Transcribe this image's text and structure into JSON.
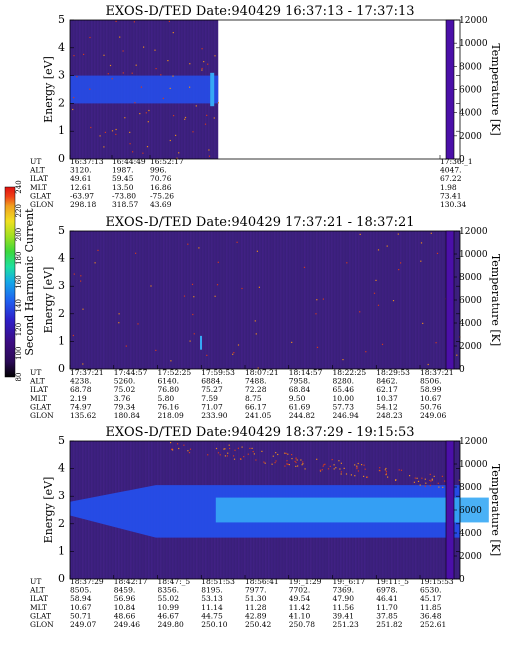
{
  "chart_data": [
    {
      "type": "heatmap",
      "title": "EXOS-D/TED   Date:940429  16:37:13 - 17:37:13",
      "ylabel": "Energy [eV]",
      "ylim": [
        0,
        5
      ],
      "yticks": [
        "0",
        "1",
        "2",
        "3",
        "4",
        "5"
      ],
      "zlabel": "Temperature [K]",
      "zlim": [
        0,
        12000
      ],
      "zticks": [
        "0",
        "2000",
        "4000",
        "6000",
        "8000",
        "10000",
        "12000"
      ],
      "data_extent_fraction": 0.38,
      "band": {
        "energy_center": 2.5,
        "energy_halfwidth": 0.5,
        "intensity": "blue"
      },
      "table": {
        "row_labels": [
          "UT",
          "ALT",
          "ILAT",
          "MLT",
          "GLAT",
          "GLON"
        ],
        "columns": [
          {
            "UT": "16:37:13",
            "ALT": "3120.",
            "ILAT": "49.61",
            "MLT": "12.61",
            "GLAT": "-63.97",
            "GLON": "298.18"
          },
          {
            "UT": "16:44:49",
            "ALT": "1987.",
            "ILAT": "59.45",
            "MLT": "13.50",
            "GLAT": "-73.80",
            "GLON": "318.57"
          },
          {
            "UT": "16:52:17",
            "ALT": "996.",
            "ILAT": "70.76",
            "MLT": "16.86",
            "GLAT": "-75.26",
            "GLON": "43.69"
          },
          {
            "UT": "17:36:_1",
            "ALT": "4047.",
            "ILAT": "67.22",
            "MLT": "1.98",
            "GLAT": "73.41",
            "GLON": "130.34"
          }
        ]
      }
    },
    {
      "type": "heatmap",
      "title": "EXOS-D/TED   Date:940429  17:37:21 - 18:37:21",
      "ylabel": "Energy [eV]",
      "ylim": [
        0,
        5
      ],
      "yticks": [
        "0",
        "1",
        "2",
        "3",
        "4",
        "5"
      ],
      "zlabel": "Temperature [K]",
      "zlim": [
        0,
        12000
      ],
      "zticks": [
        "0",
        "2000",
        "4000",
        "6000",
        "8000",
        "10000",
        "12000"
      ],
      "data_extent_fraction": 1.0,
      "band": null,
      "table": {
        "row_labels": [
          "UT",
          "ALT",
          "ILAT",
          "MLT",
          "GLAT",
          "GLON"
        ],
        "columns": [
          {
            "UT": "17:37:21",
            "ALT": "4238.",
            "ILAT": "68.78",
            "MLT": "2.19",
            "GLAT": "74.97",
            "GLON": "135.62"
          },
          {
            "UT": "17:44:57",
            "ALT": "5260.",
            "ILAT": "75.02",
            "MLT": "3.76",
            "GLAT": "79.34",
            "GLON": "180.84"
          },
          {
            "UT": "17:52:25",
            "ALT": "6140.",
            "ILAT": "76.80",
            "MLT": "5.80",
            "GLAT": "76.16",
            "GLON": "218.09"
          },
          {
            "UT": "17:59:53",
            "ALT": "6884.",
            "ILAT": "75.27",
            "MLT": "7.59",
            "GLAT": "71.07",
            "GLON": "233.90"
          },
          {
            "UT": "18:07:21",
            "ALT": "7488.",
            "ILAT": "72.28",
            "MLT": "8.75",
            "GLAT": "66.17",
            "GLON": "241.05"
          },
          {
            "UT": "18:14:57",
            "ALT": "7958.",
            "ILAT": "68.84",
            "MLT": "9.50",
            "GLAT": "61.69",
            "GLON": "244.82"
          },
          {
            "UT": "18:22:25",
            "ALT": "8280.",
            "ILAT": "65.46",
            "MLT": "10.00",
            "GLAT": "57.73",
            "GLON": "246.94"
          },
          {
            "UT": "18:29:53",
            "ALT": "8462.",
            "ILAT": "62.17",
            "MLT": "10.37",
            "GLAT": "54.12",
            "GLON": "248.23"
          },
          {
            "UT": "18:37:21",
            "ALT": "8506.",
            "ILAT": "58.99",
            "MLT": "10.67",
            "GLAT": "50.76",
            "GLON": "249.06"
          }
        ]
      }
    },
    {
      "type": "heatmap",
      "title": "EXOS-D/TED   Date:940429  18:37:29 - 19:15:53",
      "ylabel": "Energy [eV]",
      "ylim": [
        0,
        5
      ],
      "yticks": [
        "0",
        "1",
        "2",
        "3",
        "4",
        "5"
      ],
      "zlabel": "Temperature [K]",
      "zlim": [
        0,
        12000
      ],
      "zticks": [
        "0",
        "2000",
        "4000",
        "6000",
        "8000",
        "10000",
        "12000"
      ],
      "data_extent_fraction": 1.0,
      "band": {
        "energy_center": 2.5,
        "energy_halfwidth": 0.5,
        "intensity": "cyan"
      },
      "table": {
        "row_labels": [
          "UT",
          "ALT",
          "ILAT",
          "MLT",
          "GLAT",
          "GLON"
        ],
        "columns": [
          {
            "UT": "18:37:29",
            "ALT": "8505.",
            "ILAT": "58.94",
            "MLT": "10.67",
            "GLAT": "50.71",
            "GLON": "249.07"
          },
          {
            "UT": "18:42:17",
            "ALT": "8459.",
            "ILAT": "56.96",
            "MLT": "10.84",
            "GLAT": "48.66",
            "GLON": "249.46"
          },
          {
            "UT": "18:47:_5",
            "ALT": "8356.",
            "ILAT": "55.02",
            "MLT": "10.99",
            "GLAT": "46.67",
            "GLON": "249.80"
          },
          {
            "UT": "18:51:53",
            "ALT": "8195.",
            "ILAT": "53.13",
            "MLT": "11.14",
            "GLAT": "44.75",
            "GLON": "250.10"
          },
          {
            "UT": "18:56:41",
            "ALT": "7977.",
            "ILAT": "51.30",
            "MLT": "11.28",
            "GLAT": "42.89",
            "GLON": "250.42"
          },
          {
            "UT": "19:_1:29",
            "ALT": "7702.",
            "ILAT": "49.54",
            "MLT": "11.42",
            "GLAT": "41.10",
            "GLON": "250.78"
          },
          {
            "UT": "19:_6:17",
            "ALT": "7369.",
            "ILAT": "47.90",
            "MLT": "11.56",
            "GLAT": "39.41",
            "GLON": "251.23"
          },
          {
            "UT": "19:11:_5",
            "ALT": "6978.",
            "ILAT": "46.41",
            "MLT": "11.70",
            "GLAT": "37.85",
            "GLON": "251.82"
          },
          {
            "UT": "19:15:53",
            "ALT": "6530.",
            "ILAT": "45.17",
            "MLT": "11.85",
            "GLAT": "36.48",
            "GLON": "252.61"
          }
        ]
      }
    }
  ],
  "colorbar": {
    "label": "Second Harmonic Current",
    "ticks": [
      "80",
      "100",
      "120",
      "140",
      "160",
      "180",
      "200",
      "220",
      "240"
    ],
    "colors": [
      "#000000",
      "#2a0a55",
      "#3c0c80",
      "#2d1ec8",
      "#1f5ff0",
      "#14a8e8",
      "#1ee0a0",
      "#3cd83c",
      "#a0e020",
      "#f0e020",
      "#f0a020",
      "#f04018",
      "#e01010"
    ]
  },
  "colors": {
    "background": "#3a1f7a",
    "band_blue": "#2450f0",
    "band_cyan": "#36a8f5",
    "speckle_red": "#d23a1e",
    "speckle_orange": "#e88a1e",
    "temp_bar": "#4b10a8"
  }
}
